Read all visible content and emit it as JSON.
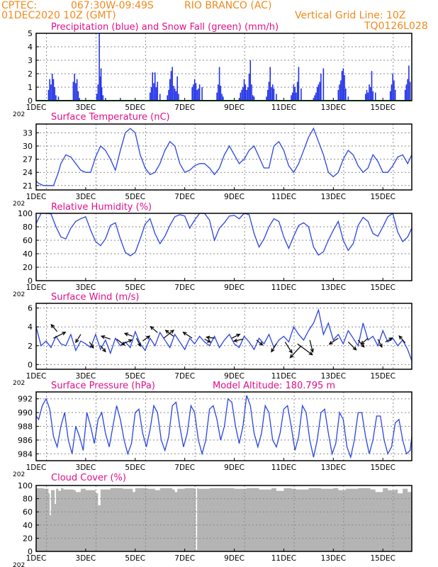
{
  "header": {
    "line1_left": "CPTEC:",
    "line1_coords": "067:30W-09:49S",
    "line1_station": "RIO BRANCO (AC)",
    "line2_left": "01DEC2020 10Z (GMT)",
    "line2_right": "Vertical Grid Line: 10Z",
    "line3_right": "TQ0126L028"
  },
  "colors": {
    "header": "#f08a1c",
    "title": "#e0108a",
    "line": "#2b45e0",
    "precip": "#2030e8",
    "snow": "#1aa52a",
    "cloud": "#b4b4b4"
  },
  "x_ticks": [
    "1DEC",
    "3DEC",
    "5DEC",
    "7DEC",
    "9DEC",
    "11DEC",
    "13DEC",
    "15DEC"
  ],
  "x_tick_prefix": "202",
  "chart_data": [
    {
      "type": "bar",
      "title": "Precipitation (blue) and Snow Fall (green) (mm/h)",
      "xlim": [
        0,
        15.167
      ],
      "ylim": [
        0,
        5
      ],
      "yticks": [
        0,
        1,
        2,
        3,
        4,
        5
      ],
      "grid": true,
      "series": [
        {
          "name": "Precipitation",
          "color": "#2030e8",
          "x": [
            0.5,
            0.55,
            0.6,
            0.65,
            0.7,
            0.75,
            0.8,
            0.9,
            1.5,
            1.55,
            1.6,
            1.65,
            1.7,
            1.75,
            2.45,
            2.5,
            2.55,
            2.6,
            2.62,
            2.65,
            2.7,
            2.8,
            3.4,
            4.6,
            4.65,
            4.7,
            4.75,
            4.8,
            4.85,
            4.9,
            5.0,
            5.3,
            5.35,
            5.4,
            5.45,
            5.5,
            5.55,
            5.6,
            5.65,
            5.7,
            5.75,
            6.3,
            6.35,
            6.4,
            6.45,
            6.5,
            6.55,
            6.6,
            6.7,
            7.3,
            7.35,
            7.4,
            7.45,
            7.5,
            7.55,
            8.2,
            8.25,
            8.3,
            8.35,
            8.4,
            8.45,
            8.5,
            8.55,
            8.6,
            8.65,
            8.7,
            8.75,
            8.8,
            9.3,
            9.35,
            9.4,
            9.45,
            9.5,
            9.55,
            9.6,
            9.7,
            10.3,
            10.35,
            10.4,
            10.45,
            10.5,
            10.55,
            10.6,
            10.7,
            11.2,
            11.25,
            11.3,
            11.35,
            11.4,
            11.45,
            11.5,
            11.6,
            12.2,
            12.25,
            12.3,
            12.35,
            12.4,
            12.45,
            12.5,
            12.6,
            13.3,
            13.35,
            13.4,
            13.45,
            13.5,
            13.55,
            13.6,
            13.7,
            14.3,
            14.35,
            14.4,
            14.45,
            14.5,
            14.9,
            14.95,
            15.0,
            15.05,
            15.1
          ],
          "values": [
            0.8,
            1.6,
            1.2,
            2.0,
            1.6,
            1.0,
            0.4,
            0.3,
            1.4,
            2.0,
            1.3,
            1.6,
            0.7,
            0.2,
            0.5,
            1.2,
            5.0,
            1.8,
            2.4,
            1.0,
            0.4,
            0.2,
            0.2,
            0.6,
            1.0,
            2.1,
            1.3,
            2.1,
            1.0,
            1.4,
            0.5,
            0.4,
            0.8,
            1.6,
            2.2,
            2.5,
            1.1,
            0.9,
            0.7,
            1.8,
            0.5,
            1.0,
            1.2,
            1.6,
            1.3,
            0.8,
            0.9,
            1.2,
            1.0,
            0.6,
            1.2,
            2.5,
            1.1,
            0.5,
            0.3,
            0.2,
            0.6,
            0.8,
            1.0,
            1.6,
            1.2,
            0.8,
            1.0,
            2.0,
            3.0,
            1.2,
            0.4,
            0.3,
            0.3,
            0.8,
            1.4,
            2.5,
            1.0,
            1.2,
            0.9,
            0.5,
            0.4,
            0.6,
            1.2,
            1.0,
            0.6,
            1.4,
            2.5,
            0.9,
            0.2,
            0.4,
            0.6,
            1.0,
            1.2,
            1.4,
            2.0,
            2.4,
            0.8,
            1.2,
            1.5,
            2.2,
            2.4,
            1.9,
            0.9,
            0.3,
            0.5,
            0.8,
            0.6,
            1.2,
            1.0,
            2.2,
            0.7,
            0.6,
            0.7,
            1.2,
            2.0,
            1.5,
            0.8,
            0.8,
            1.2,
            1.6,
            2.6,
            1.4
          ]
        },
        {
          "name": "Snow Fall",
          "color": "#1aa52a",
          "x": [
            0,
            15.167
          ],
          "values": [
            0,
            0
          ]
        }
      ]
    },
    {
      "type": "line",
      "title": "Surface Temperature (nC)",
      "xlim": [
        0,
        15.167
      ],
      "ylim": [
        20,
        35
      ],
      "yticks": [
        21,
        24,
        27,
        30,
        33
      ],
      "grid": true,
      "x": [
        0,
        0.1,
        0.3,
        0.5,
        0.7,
        0.9,
        1.0,
        1.2,
        1.4,
        1.6,
        1.8,
        2.0,
        2.2,
        2.4,
        2.6,
        2.8,
        3.0,
        3.2,
        3.4,
        3.6,
        3.8,
        4.0,
        4.2,
        4.4,
        4.6,
        4.8,
        5.0,
        5.2,
        5.4,
        5.6,
        5.8,
        6.0,
        6.2,
        6.4,
        6.6,
        6.8,
        7.0,
        7.2,
        7.4,
        7.6,
        7.8,
        8.0,
        8.2,
        8.4,
        8.6,
        8.8,
        9.0,
        9.2,
        9.4,
        9.6,
        9.8,
        10.0,
        10.2,
        10.4,
        10.6,
        10.8,
        11.0,
        11.2,
        11.4,
        11.6,
        11.8,
        12.0,
        12.2,
        12.4,
        12.6,
        12.8,
        13.0,
        13.2,
        13.4,
        13.6,
        13.8,
        14.0,
        14.2,
        14.4,
        14.6,
        14.8,
        15.0,
        15.167
      ],
      "values": [
        22,
        21.5,
        21,
        21,
        21,
        24,
        26,
        28,
        27.5,
        26,
        24.5,
        24,
        24,
        27.5,
        30,
        29,
        27,
        24.5,
        29,
        33,
        34,
        33,
        28,
        25,
        23.5,
        24,
        26,
        29,
        31,
        30,
        26,
        24,
        24.5,
        25.5,
        26,
        26,
        25,
        23.5,
        25,
        28,
        30,
        28,
        26,
        27,
        29,
        30,
        27.5,
        25,
        25,
        30,
        31,
        29,
        25.5,
        24,
        26,
        29,
        32,
        34,
        31,
        28,
        24,
        23,
        24,
        27,
        29,
        28,
        25.5,
        24,
        25,
        28,
        26.5,
        24,
        24,
        25.5,
        27.5,
        28,
        26,
        28
      ]
    },
    {
      "type": "line",
      "title": "Relative Humidity (%)",
      "xlim": [
        0,
        15.167
      ],
      "ylim": [
        0,
        100
      ],
      "yticks": [
        0,
        20,
        40,
        60,
        80,
        100
      ],
      "grid": true,
      "x": [
        0,
        0.2,
        0.4,
        0.6,
        0.8,
        1.0,
        1.2,
        1.4,
        1.6,
        1.8,
        2.0,
        2.2,
        2.4,
        2.6,
        2.8,
        3.0,
        3.2,
        3.4,
        3.6,
        3.8,
        4.0,
        4.2,
        4.4,
        4.6,
        4.8,
        5.0,
        5.2,
        5.4,
        5.6,
        5.8,
        6.0,
        6.2,
        6.4,
        6.6,
        6.8,
        7.0,
        7.2,
        7.4,
        7.6,
        7.8,
        8.0,
        8.2,
        8.4,
        8.6,
        8.8,
        9.0,
        9.2,
        9.4,
        9.6,
        9.8,
        10.0,
        10.2,
        10.4,
        10.6,
        10.8,
        11.0,
        11.2,
        11.4,
        11.6,
        11.8,
        12.0,
        12.2,
        12.4,
        12.6,
        12.8,
        13.0,
        13.2,
        13.4,
        13.6,
        13.8,
        14.0,
        14.2,
        14.4,
        14.6,
        14.8,
        15.0,
        15.167
      ],
      "values": [
        85,
        100,
        100,
        99,
        80,
        65,
        62,
        78,
        88,
        92,
        95,
        75,
        58,
        52,
        62,
        82,
        86,
        62,
        42,
        37,
        42,
        62,
        84,
        92,
        70,
        55,
        66,
        82,
        95,
        98,
        96,
        78,
        90,
        100,
        100,
        90,
        60,
        78,
        86,
        96,
        97,
        92,
        100,
        98,
        70,
        50,
        62,
        80,
        92,
        88,
        65,
        48,
        66,
        82,
        86,
        80,
        50,
        38,
        43,
        60,
        75,
        88,
        60,
        45,
        55,
        82,
        94,
        88,
        70,
        66,
        80,
        95,
        100,
        72,
        58,
        65,
        78
      ]
    },
    {
      "type": "line",
      "title": "Surface Wind (m/s)",
      "xlim": [
        0,
        15.167
      ],
      "ylim": [
        -0.5,
        6.5
      ],
      "yticks": [
        0,
        2,
        4,
        6
      ],
      "grid": true,
      "x": [
        0,
        0.2,
        0.4,
        0.6,
        0.8,
        1.0,
        1.2,
        1.4,
        1.6,
        1.8,
        2.0,
        2.2,
        2.4,
        2.6,
        2.8,
        3.0,
        3.2,
        3.4,
        3.6,
        3.8,
        4.0,
        4.2,
        4.4,
        4.6,
        4.8,
        5.0,
        5.2,
        5.4,
        5.6,
        5.8,
        6.0,
        6.2,
        6.4,
        6.6,
        6.8,
        7.0,
        7.2,
        7.4,
        7.6,
        7.8,
        8.0,
        8.2,
        8.4,
        8.6,
        8.8,
        9.0,
        9.2,
        9.4,
        9.6,
        9.8,
        10.0,
        10.2,
        10.4,
        10.6,
        10.8,
        11.0,
        11.2,
        11.4,
        11.6,
        11.8,
        12.0,
        12.2,
        12.4,
        12.6,
        12.8,
        13.0,
        13.2,
        13.4,
        13.6,
        13.8,
        14.0,
        14.2,
        14.4,
        14.6,
        14.8,
        15.0,
        15.167
      ],
      "values": [
        4,
        2,
        2.5,
        1.8,
        3,
        2.2,
        2,
        3.2,
        1.5,
        2.5,
        2.2,
        1.8,
        3.2,
        1.6,
        2.6,
        1.2,
        2.8,
        2,
        2.4,
        1.8,
        3.5,
        2.2,
        1.5,
        2.8,
        2,
        3.4,
        2.6,
        1.8,
        3.2,
        2.4,
        1.6,
        2.8,
        2.2,
        3,
        2.4,
        2,
        3,
        1.8,
        2.6,
        3.2,
        2.2,
        1.8,
        3,
        2.4,
        1.6,
        2.8,
        2.2,
        3.2,
        1.8,
        2.6,
        3,
        2.4,
        4,
        3.2,
        2.6,
        3.6,
        4.4,
        5.8,
        3.2,
        4.4,
        2.6,
        3.2,
        2.2,
        3.6,
        2.8,
        2,
        4.4,
        2.6,
        3,
        2,
        3.6,
        2.4,
        2.8,
        2,
        2.6,
        1.6,
        0.4
      ],
      "arrows": [
        [
          0.7,
          2.8,
          1.2,
          0.6
        ],
        [
          0.85,
          3.5,
          -0.6,
          0.7
        ],
        [
          1.8,
          3.2,
          -0.5,
          -0.8
        ],
        [
          2.15,
          2.4,
          0.4,
          -0.6
        ],
        [
          2.6,
          2.0,
          0.5,
          -0.6
        ],
        [
          3.0,
          2.7,
          -0.9,
          0.3
        ],
        [
          3.25,
          2.7,
          0.8,
          -0.6
        ],
        [
          3.5,
          2.2,
          0.9,
          0.4
        ],
        [
          3.9,
          3.0,
          -0.8,
          0.3
        ],
        [
          4.05,
          2.8,
          0.4,
          -0.8
        ],
        [
          4.3,
          2.5,
          0.7,
          0.5
        ],
        [
          4.9,
          3.4,
          -0.7,
          0.6
        ],
        [
          5.15,
          2.8,
          1.0,
          0.8
        ],
        [
          5.55,
          3.0,
          -0.8,
          0.6
        ],
        [
          6.3,
          2.8,
          -0.9,
          0.6
        ],
        [
          6.8,
          2.7,
          0.6,
          -0.3
        ],
        [
          7.2,
          2.8,
          -0.8,
          0.1
        ],
        [
          7.9,
          2.8,
          0.8,
          0.4
        ],
        [
          8.35,
          2.7,
          -0.9,
          -0.2
        ],
        [
          8.9,
          2.6,
          0.6,
          -0.5
        ],
        [
          9.7,
          2.2,
          -0.5,
          -0.8
        ],
        [
          10.05,
          2.4,
          0.7,
          -1.1
        ],
        [
          10.55,
          2.2,
          1.5,
          -1.1
        ],
        [
          10.7,
          2.0,
          -1.1,
          -1.2
        ],
        [
          11.05,
          2.6,
          0.3,
          -1.2
        ],
        [
          12.2,
          2.8,
          -0.9,
          -0.6
        ],
        [
          12.6,
          2.4,
          0.8,
          -0.8
        ],
        [
          13.0,
          2.6,
          0.6,
          -0.7
        ],
        [
          13.4,
          2.8,
          -0.7,
          -0.6
        ],
        [
          13.8,
          2.7,
          0.4,
          -0.8
        ],
        [
          14.1,
          2.4,
          0.7,
          0.4
        ],
        [
          14.9,
          2.3,
          -0.6,
          0.7
        ]
      ]
    },
    {
      "type": "line",
      "title": "Surface Pressure (hPa)",
      "annotation": "Model Altitude: 180.795 m",
      "xlim": [
        0,
        15.167
      ],
      "ylim": [
        983,
        993
      ],
      "yticks": [
        984,
        986,
        988,
        990,
        992
      ],
      "grid": true,
      "x": [
        0,
        0.1,
        0.25,
        0.4,
        0.55,
        0.7,
        0.85,
        1.0,
        1.15,
        1.3,
        1.45,
        1.6,
        1.75,
        1.9,
        2.05,
        2.2,
        2.35,
        2.5,
        2.65,
        2.8,
        2.95,
        3.1,
        3.25,
        3.4,
        3.55,
        3.7,
        3.85,
        4.0,
        4.15,
        4.3,
        4.45,
        4.6,
        4.75,
        4.9,
        5.05,
        5.2,
        5.35,
        5.5,
        5.65,
        5.8,
        5.95,
        6.1,
        6.25,
        6.4,
        6.55,
        6.7,
        6.85,
        7.0,
        7.15,
        7.3,
        7.45,
        7.6,
        7.75,
        7.9,
        8.05,
        8.2,
        8.35,
        8.5,
        8.65,
        8.8,
        8.95,
        9.1,
        9.25,
        9.4,
        9.55,
        9.7,
        9.85,
        10.0,
        10.15,
        10.3,
        10.45,
        10.6,
        10.75,
        10.9,
        11.05,
        11.2,
        11.35,
        11.5,
        11.65,
        11.8,
        11.95,
        12.1,
        12.25,
        12.4,
        12.55,
        12.7,
        12.85,
        13.0,
        13.15,
        13.3,
        13.45,
        13.6,
        13.75,
        13.9,
        14.05,
        14.2,
        14.35,
        14.5,
        14.65,
        14.8,
        14.95,
        15.1,
        15.167
      ],
      "values": [
        989.5,
        989,
        991,
        992,
        990.5,
        986.5,
        985,
        988,
        990,
        986,
        984,
        988,
        986.5,
        984.5,
        990,
        988,
        985.5,
        989,
        990,
        987,
        985,
        988,
        991,
        989,
        986,
        984,
        985.5,
        990,
        990.5,
        987,
        985,
        987.5,
        991,
        990,
        986,
        984.5,
        986.5,
        991,
        991.5,
        988,
        985,
        987,
        991,
        990,
        986,
        984,
        986,
        990.5,
        991,
        989,
        986,
        988,
        992,
        991.5,
        988,
        985.5,
        988,
        992.5,
        991,
        987,
        985,
        987,
        991,
        990,
        986,
        985,
        987,
        990.5,
        991,
        988,
        984.5,
        986.5,
        991,
        990,
        986,
        983.5,
        986,
        990,
        990.5,
        987,
        984,
        985.5,
        990,
        989,
        985,
        983.5,
        986,
        990,
        990,
        986.5,
        984,
        986,
        989.5,
        989.5,
        986,
        984,
        985,
        988.5,
        989,
        986,
        984,
        984.5,
        986.5
      ]
    },
    {
      "type": "area",
      "title": "Cloud Cover (%)",
      "xlim": [
        0,
        15.167
      ],
      "ylim": [
        0,
        100
      ],
      "yticks": [
        0,
        20,
        40,
        60,
        80,
        100
      ],
      "grid": true,
      "x": [
        0,
        0.3,
        0.5,
        0.55,
        0.6,
        0.75,
        0.8,
        0.9,
        1.0,
        1.1,
        1.5,
        1.6,
        1.8,
        2.0,
        2.4,
        2.5,
        2.6,
        3.0,
        3.5,
        3.9,
        4.0,
        4.5,
        4.8,
        5.0,
        5.5,
        5.6,
        5.7,
        6.0,
        6.4,
        6.45,
        6.5,
        6.55,
        7.0,
        7.5,
        8.0,
        8.5,
        9.0,
        9.5,
        9.7,
        10.0,
        10.3,
        10.5,
        11.0,
        11.5,
        12.0,
        12.2,
        12.5,
        13.0,
        13.5,
        13.7,
        14.0,
        14.2,
        14.5,
        14.6,
        14.8,
        15.0,
        15.167
      ],
      "values": [
        96,
        95,
        88,
        55,
        93,
        72,
        95,
        92,
        96,
        94,
        93,
        90,
        95,
        93,
        88,
        70,
        94,
        96,
        95,
        90,
        96,
        95,
        93,
        96,
        94,
        90,
        95,
        96,
        95,
        2,
        96,
        95,
        96,
        96,
        95,
        96,
        94,
        96,
        92,
        96,
        95,
        94,
        96,
        95,
        96,
        93,
        95,
        96,
        94,
        90,
        96,
        93,
        94,
        88,
        95,
        90,
        95
      ]
    }
  ]
}
